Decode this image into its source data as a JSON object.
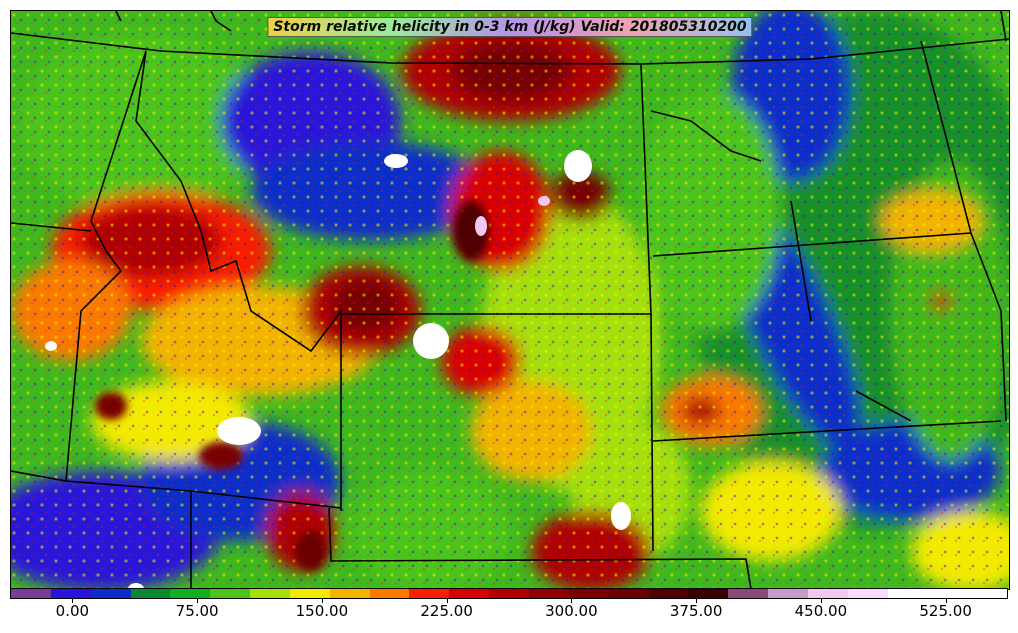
{
  "title": "Storm relative helicity in 0-3 km (J/kg) Valid: 201805310200",
  "colorbar": {
    "colors": [
      "#7a3c96",
      "#2a14d8",
      "#0a2ec8",
      "#0a8a30",
      "#12b020",
      "#4cc41c",
      "#a4e00c",
      "#f2ea00",
      "#f2b400",
      "#fa7a00",
      "#f81e00",
      "#d80000",
      "#b00000",
      "#900000",
      "#780000",
      "#6a0000",
      "#500000",
      "#3a0000",
      "#8a4a78",
      "#c89ac8",
      "#f0c8f0",
      "#fadcfa",
      "#ffffff",
      "#ffffff",
      "#ffffff"
    ],
    "tick_labels": [
      "0.00",
      "75.00",
      "150.00",
      "225.00",
      "300.00",
      "375.00",
      "450.00",
      "525.00"
    ],
    "tick_values": [
      0,
      75,
      150,
      225,
      300,
      375,
      450,
      525
    ],
    "range": [
      -37.5,
      562.5
    ]
  },
  "map": {
    "region": "Northern and central Great Plains / Rocky Mountains",
    "field": "storm relative helicity 0-3 km",
    "units": "J/kg",
    "valid": "201805310200"
  }
}
